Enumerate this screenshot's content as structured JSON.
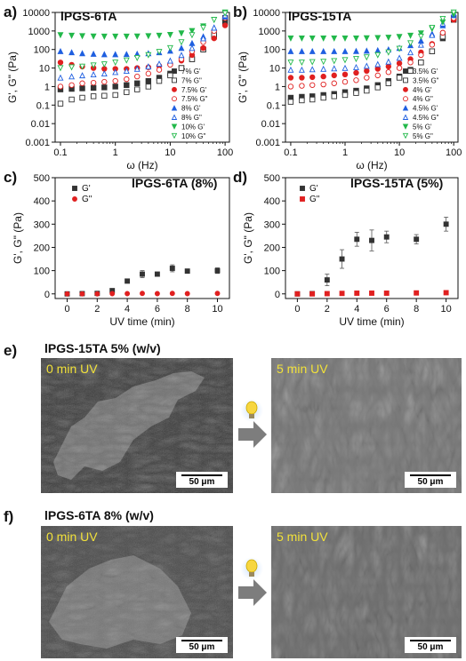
{
  "panels": {
    "a": {
      "letter": "a)",
      "title": "lPGS-6TA",
      "xlabel": "ω (Hz)",
      "ylabel": "G', G\" (Pa)",
      "legend": [
        "7% G'",
        "7% G\"",
        "7.5% G'",
        "7.5% G\"",
        "8% G'",
        "8% G\"",
        "10% G'",
        "10% G\""
      ]
    },
    "b": {
      "letter": "b)",
      "title": "lPGS-15TA",
      "xlabel": "ω (Hz)",
      "ylabel": "G', G\" (Pa)",
      "legend": [
        "3.5% G'",
        "3.5% G\"",
        "4% G'",
        "4% G\"",
        "4.5% G'",
        "4.5% G\"",
        "5% G'",
        "5% G\""
      ]
    },
    "c": {
      "letter": "c)",
      "title": "lPGS-6TA (8%)",
      "xlabel": "UV time (min)",
      "ylabel": "G', G\" (Pa)",
      "legend": [
        "G'",
        "G\""
      ]
    },
    "d": {
      "letter": "d)",
      "title": "lPGS-15TA (5%)",
      "xlabel": "UV time (min)",
      "ylabel": "G', G\" (Pa)",
      "legend": [
        "G'",
        "G\""
      ]
    },
    "e": {
      "letter": "e)",
      "title": "lPGS-15TA 5% (w/v)",
      "left_caption": "0 min UV",
      "right_caption": "5 min UV",
      "scale_left": "50 μm",
      "scale_right": "50 μm"
    },
    "f": {
      "letter": "f)",
      "title": "lPGS-6TA 8% (w/v)",
      "left_caption": "0 min UV",
      "right_caption": "5 min UV",
      "scale_left": "50 μm",
      "scale_right": "50 μm"
    }
  },
  "colors": {
    "black": "#333333",
    "red": "#e02020",
    "blue": "#1f5fe0",
    "green": "#22b84a",
    "arrow": "#7d7d7d",
    "bulb": "#f7d640",
    "bulb_glow": "#cfe3ff"
  },
  "chart_data": [
    {
      "type": "scatter",
      "panel": "a",
      "xscale": "log",
      "yscale": "log",
      "xlim": [
        0.08,
        120
      ],
      "ylim": [
        0.001,
        10000
      ],
      "x_ticks": [
        "0.1",
        "1",
        "10",
        "100"
      ],
      "y_ticks": [
        "0.001",
        "0.01",
        "0.1",
        "1",
        "10",
        "100",
        "1000",
        "10000"
      ],
      "xlabel": "ω (Hz)",
      "ylabel": "G', G\" (Pa)",
      "series": [
        {
          "name": "7% G'",
          "color": "black",
          "marker": "square",
          "filled": true,
          "x": [
            0.1,
            0.16,
            0.25,
            0.4,
            0.63,
            1,
            1.6,
            2.5,
            4,
            6.3,
            10,
            16,
            25,
            40,
            63,
            100
          ],
          "y": [
            0.7,
            0.75,
            0.8,
            0.85,
            0.9,
            1,
            1.2,
            1.5,
            2,
            3,
            5,
            10,
            30,
            100,
            500,
            3000
          ]
        },
        {
          "name": "7% G\"",
          "color": "black",
          "marker": "square",
          "filled": false,
          "x": [
            0.1,
            0.16,
            0.25,
            0.4,
            0.63,
            1,
            1.6,
            2.5,
            4,
            6.3,
            10,
            16,
            25,
            40,
            63,
            100
          ],
          "y": [
            0.12,
            0.2,
            0.25,
            0.3,
            0.32,
            0.35,
            0.5,
            0.7,
            1,
            2,
            4,
            10,
            30,
            100,
            600,
            5000
          ]
        },
        {
          "name": "7.5% G'",
          "color": "red",
          "marker": "circle",
          "filled": true,
          "x": [
            0.1,
            0.16,
            0.25,
            0.4,
            0.63,
            1,
            1.6,
            2.5,
            4,
            6.3,
            10,
            16,
            25,
            40,
            63,
            100
          ],
          "y": [
            20,
            15,
            12,
            10,
            9,
            9,
            9,
            10,
            11,
            13,
            16,
            25,
            50,
            120,
            400,
            2000
          ]
        },
        {
          "name": "7.5% G\"",
          "color": "red",
          "marker": "circle",
          "filled": false,
          "x": [
            0.1,
            0.16,
            0.25,
            0.4,
            0.63,
            1,
            1.6,
            2.5,
            4,
            6.3,
            10,
            16,
            25,
            40,
            63,
            100
          ],
          "y": [
            1,
            1.2,
            1.5,
            1.6,
            1.8,
            2,
            2.5,
            3.5,
            5,
            8,
            15,
            30,
            80,
            250,
            1000,
            5000
          ]
        },
        {
          "name": "8% G'",
          "color": "blue",
          "marker": "triangle",
          "filled": true,
          "x": [
            0.1,
            0.16,
            0.25,
            0.4,
            0.63,
            1,
            1.6,
            2.5,
            4,
            6.3,
            10,
            16,
            25,
            40,
            63,
            100
          ],
          "y": [
            80,
            70,
            62,
            58,
            55,
            55,
            56,
            58,
            62,
            70,
            85,
            120,
            220,
            500,
            1500,
            6000
          ]
        },
        {
          "name": "8% G\"",
          "color": "blue",
          "marker": "triangle",
          "filled": false,
          "x": [
            0.1,
            0.16,
            0.25,
            0.4,
            0.63,
            1,
            1.6,
            2.5,
            4,
            6.3,
            10,
            16,
            25,
            40,
            63,
            100
          ],
          "y": [
            3,
            3.5,
            4,
            4.5,
            5,
            6,
            7,
            9,
            12,
            17,
            25,
            50,
            120,
            400,
            1500,
            7000
          ]
        },
        {
          "name": "10% G'",
          "color": "green",
          "marker": "triangle-down",
          "filled": true,
          "x": [
            0.1,
            0.16,
            0.25,
            0.4,
            0.63,
            1,
            1.6,
            2.5,
            4,
            6.3,
            10,
            16,
            25,
            40,
            63,
            100
          ],
          "y": [
            600,
            560,
            530,
            510,
            500,
            500,
            500,
            510,
            530,
            560,
            620,
            750,
            1000,
            1800,
            4000,
            10000
          ]
        },
        {
          "name": "10% G\"",
          "color": "green",
          "marker": "triangle-down",
          "filled": false,
          "x": [
            0.1,
            0.16,
            0.25,
            0.4,
            0.63,
            1,
            1.6,
            2.5,
            4,
            6.3,
            10,
            16,
            25,
            40,
            63,
            100
          ],
          "y": [
            10,
            11,
            12,
            14,
            16,
            20,
            26,
            35,
            50,
            75,
            120,
            250,
            600,
            1500,
            4000,
            9000
          ]
        }
      ]
    },
    {
      "type": "scatter",
      "panel": "b",
      "xscale": "log",
      "yscale": "log",
      "xlim": [
        0.08,
        120
      ],
      "ylim": [
        0.001,
        10000
      ],
      "x_ticks": [
        "0.1",
        "1",
        "10",
        "100"
      ],
      "y_ticks": [
        "0.001",
        "0.01",
        "0.1",
        "1",
        "10",
        "100",
        "1000",
        "10000"
      ],
      "xlabel": "ω (Hz)",
      "ylabel": "G', G\" (Pa)",
      "series": [
        {
          "name": "3.5% G'",
          "color": "black",
          "marker": "square",
          "filled": true,
          "x": [
            0.1,
            0.16,
            0.25,
            0.4,
            0.63,
            1,
            1.6,
            2.5,
            4,
            6.3,
            10,
            16,
            25,
            40,
            63,
            100
          ],
          "y": [
            0.25,
            0.28,
            0.3,
            0.35,
            0.4,
            0.5,
            0.6,
            0.8,
            1.2,
            2,
            3.5,
            8,
            20,
            80,
            400,
            4000
          ]
        },
        {
          "name": "3.5% G\"",
          "color": "black",
          "marker": "square",
          "filled": false,
          "x": [
            0.1,
            0.16,
            0.25,
            0.4,
            0.63,
            1,
            1.6,
            2.5,
            4,
            6.3,
            10,
            16,
            25,
            40,
            63,
            100
          ],
          "y": [
            0.15,
            0.18,
            0.2,
            0.25,
            0.3,
            0.35,
            0.45,
            0.6,
            0.9,
            1.5,
            3,
            7,
            20,
            80,
            500,
            5000
          ]
        },
        {
          "name": "4% G'",
          "color": "red",
          "marker": "circle",
          "filled": true,
          "x": [
            0.1,
            0.16,
            0.25,
            0.4,
            0.63,
            1,
            1.6,
            2.5,
            4,
            6.3,
            10,
            16,
            25,
            40,
            63,
            100
          ],
          "y": [
            3,
            3,
            3.2,
            3.5,
            4,
            4.5,
            5.5,
            7,
            9,
            12,
            18,
            30,
            70,
            200,
            800,
            4000
          ]
        },
        {
          "name": "4% G\"",
          "color": "red",
          "marker": "circle",
          "filled": false,
          "x": [
            0.1,
            0.16,
            0.25,
            0.4,
            0.63,
            1,
            1.6,
            2.5,
            4,
            6.3,
            10,
            16,
            25,
            40,
            63,
            100
          ],
          "y": [
            1,
            1.1,
            1.2,
            1.3,
            1.5,
            1.8,
            2.2,
            3,
            4,
            6,
            10,
            20,
            50,
            180,
            800,
            5000
          ]
        },
        {
          "name": "4.5% G'",
          "color": "blue",
          "marker": "triangle",
          "filled": true,
          "x": [
            0.1,
            0.16,
            0.25,
            0.4,
            0.63,
            1,
            1.6,
            2.5,
            4,
            6.3,
            10,
            16,
            25,
            40,
            63,
            100
          ],
          "y": [
            80,
            80,
            80,
            80,
            80,
            80,
            82,
            85,
            90,
            100,
            120,
            170,
            300,
            700,
            2000,
            7000
          ]
        },
        {
          "name": "4.5% G\"",
          "color": "blue",
          "marker": "triangle",
          "filled": false,
          "x": [
            0.1,
            0.16,
            0.25,
            0.4,
            0.63,
            1,
            1.6,
            2.5,
            4,
            6.3,
            10,
            16,
            25,
            40,
            63,
            100
          ],
          "y": [
            8,
            8,
            8.5,
            9,
            9.5,
            10,
            11,
            13,
            16,
            22,
            35,
            70,
            180,
            600,
            2500,
            9000
          ]
        },
        {
          "name": "5% G'",
          "color": "green",
          "marker": "triangle-down",
          "filled": true,
          "x": [
            0.1,
            0.16,
            0.25,
            0.4,
            0.63,
            1,
            1.6,
            2.5,
            4,
            6.3,
            10,
            16,
            25,
            40,
            63,
            100
          ],
          "y": [
            400,
            400,
            400,
            400,
            400,
            400,
            400,
            410,
            420,
            440,
            480,
            560,
            750,
            1300,
            3000,
            8000
          ]
        },
        {
          "name": "5% G\"",
          "color": "green",
          "marker": "triangle-down",
          "filled": false,
          "x": [
            0.1,
            0.16,
            0.25,
            0.4,
            0.63,
            1,
            1.6,
            2.5,
            4,
            6.3,
            10,
            16,
            25,
            40,
            63,
            100
          ],
          "y": [
            20,
            20,
            21,
            22,
            24,
            27,
            31,
            38,
            50,
            70,
            110,
            220,
            500,
            1500,
            4500,
            10000
          ]
        }
      ]
    },
    {
      "type": "scatter",
      "panel": "c",
      "xlim": [
        -0.8,
        10.8
      ],
      "ylim": [
        -20,
        500
      ],
      "x_ticks": [
        "0",
        "2",
        "4",
        "6",
        "8",
        "10"
      ],
      "y_ticks": [
        "0",
        "100",
        "200",
        "300",
        "400",
        "500"
      ],
      "xlabel": "UV time (min)",
      "ylabel": "G', G\" (Pa)",
      "series": [
        {
          "name": "G'",
          "color": "black",
          "marker": "square",
          "filled": true,
          "x": [
            0,
            1,
            2,
            3,
            4,
            5,
            6,
            7,
            8,
            10
          ],
          "y": [
            0,
            1,
            2,
            14,
            55,
            85,
            85,
            110,
            98,
            100
          ],
          "err": [
            0,
            0,
            0,
            5,
            6,
            15,
            6,
            15,
            5,
            12
          ]
        },
        {
          "name": "G\"",
          "color": "red",
          "marker": "circle",
          "filled": true,
          "x": [
            0,
            1,
            2,
            3,
            4,
            5,
            6,
            7,
            8,
            10
          ],
          "y": [
            0,
            0,
            0,
            1,
            1,
            2,
            1,
            2,
            1,
            2
          ]
        }
      ]
    },
    {
      "type": "scatter",
      "panel": "d",
      "xlim": [
        -0.8,
        10.8
      ],
      "ylim": [
        -20,
        500
      ],
      "x_ticks": [
        "0",
        "2",
        "4",
        "6",
        "8",
        "10"
      ],
      "y_ticks": [
        "0",
        "100",
        "200",
        "300",
        "400",
        "500"
      ],
      "xlabel": "UV time (min)",
      "ylabel": "G', G\" (Pa)",
      "series": [
        {
          "name": "G'",
          "color": "black",
          "marker": "square",
          "filled": true,
          "x": [
            0,
            1,
            2,
            3,
            4,
            5,
            6,
            8,
            10
          ],
          "y": [
            0,
            1,
            60,
            150,
            235,
            230,
            245,
            235,
            300
          ],
          "err": [
            0,
            0,
            25,
            40,
            30,
            45,
            25,
            20,
            30
          ]
        },
        {
          "name": "G\"",
          "color": "red",
          "marker": "square",
          "filled": true,
          "x": [
            0,
            1,
            2,
            3,
            4,
            5,
            6,
            8,
            10
          ],
          "y": [
            0,
            0,
            1,
            2,
            3,
            3,
            3,
            4,
            5
          ]
        }
      ]
    }
  ]
}
